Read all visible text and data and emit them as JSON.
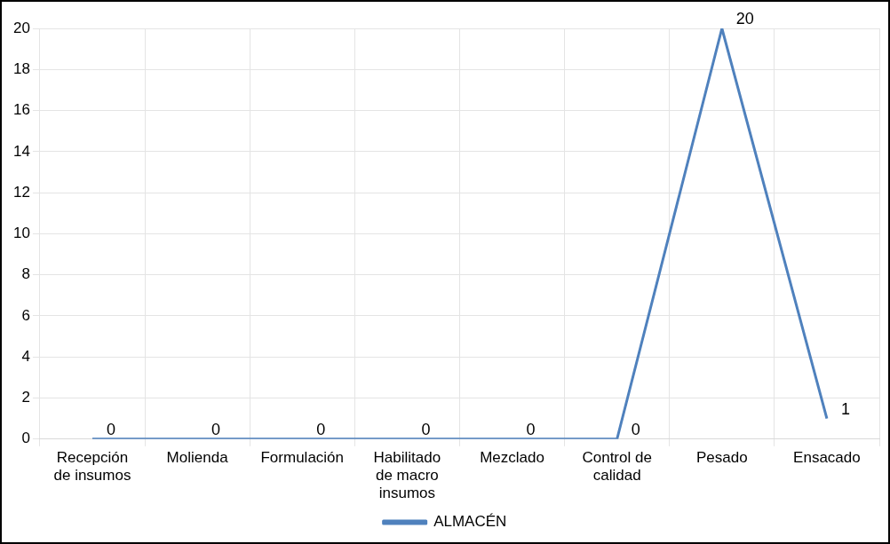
{
  "chart_data": {
    "type": "line",
    "categories": [
      "Recepción de insumos",
      "Molienda",
      "Formulación",
      "Habilitado de macro insumos",
      "Mezclado",
      "Control de calidad",
      "Pesado",
      "Ensacado"
    ],
    "series": [
      {
        "name": "ALMACÉN",
        "color": "#4f81bd",
        "values": [
          0,
          0,
          0,
          0,
          0,
          0,
          20,
          1
        ]
      }
    ],
    "ylim": [
      0,
      20
    ],
    "yticks": [
      0,
      2,
      4,
      6,
      8,
      10,
      12,
      14,
      16,
      18,
      20
    ],
    "grid": true,
    "legend": "bottom",
    "marker": "none",
    "data_labels": true
  }
}
